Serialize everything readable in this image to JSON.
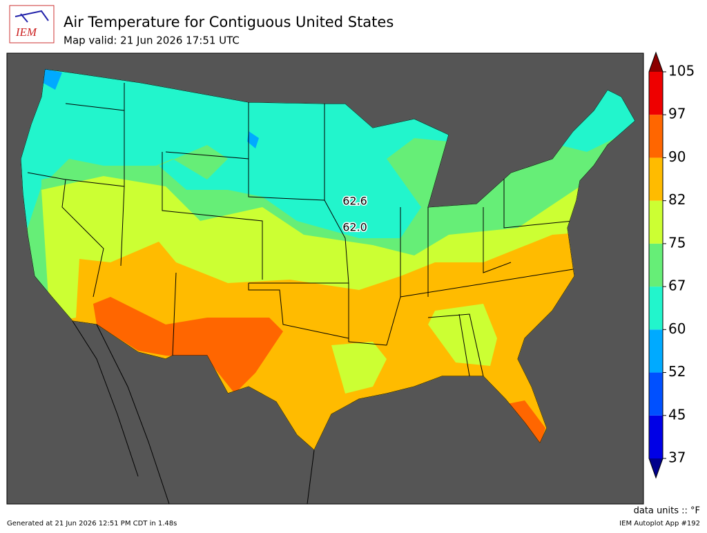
{
  "header": {
    "logo": "IEM",
    "title": "Air Temperature for Contiguous United States",
    "subtitle": "Map valid: 21 Jun 2026 17:51 UTC"
  },
  "map": {
    "contour_labels": [
      "62.6",
      "62.0"
    ]
  },
  "colorbar": {
    "levels": [
      37,
      45,
      52,
      60,
      67,
      75,
      82,
      90,
      97,
      105
    ],
    "colors": [
      "#0000e6",
      "#0050ff",
      "#00aaff",
      "#22f5cc",
      "#66ee77",
      "#ccff33",
      "#ffbb00",
      "#ff6600",
      "#ee0000"
    ],
    "under": "#00008b",
    "over": "#8b0000",
    "units": "data units :: °F"
  },
  "footer": {
    "generated": "Generated at 21 Jun 2026 12:51 PM CDT in 1.48s",
    "app": "IEM Autoplot App #192"
  }
}
